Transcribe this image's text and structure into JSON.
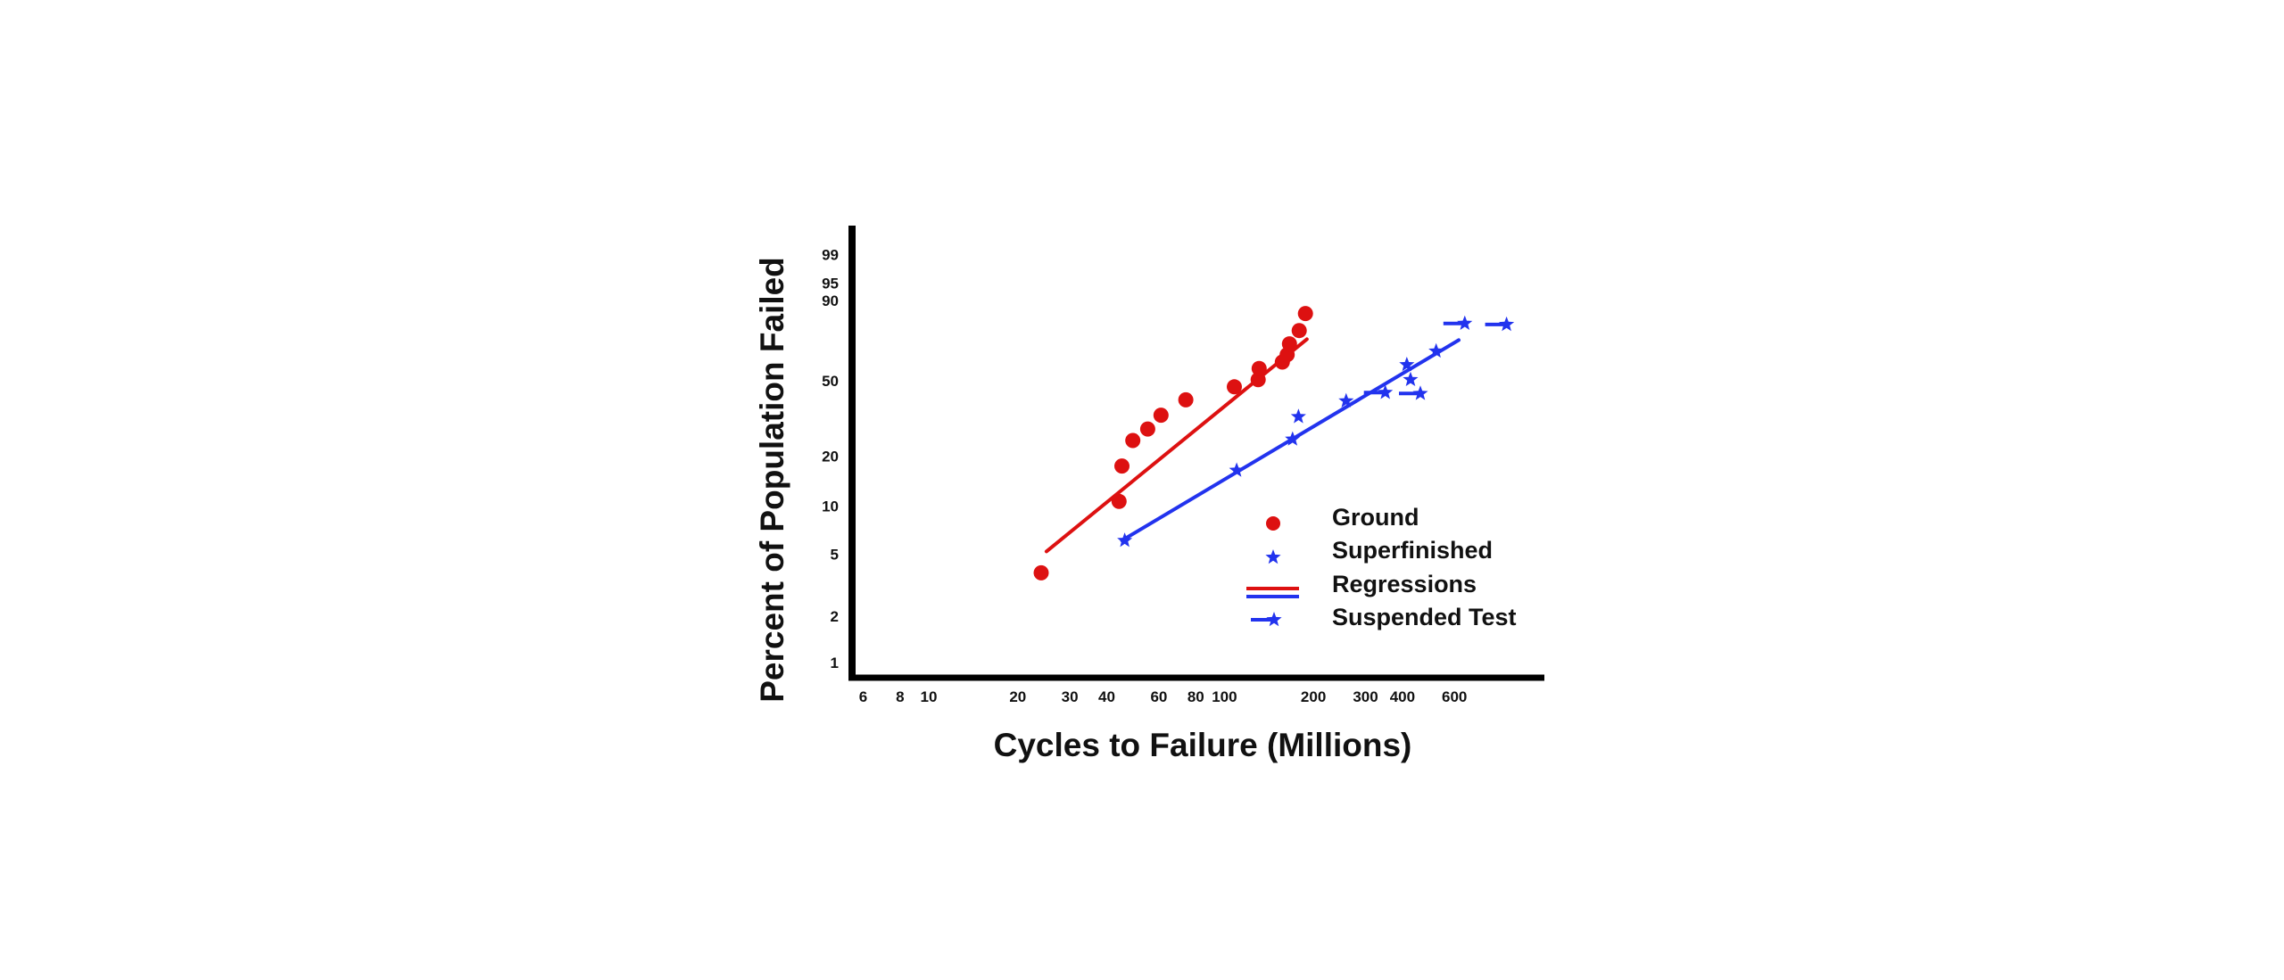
{
  "chart_data": {
    "type": "scatter",
    "title": "",
    "xlabel": "Cycles to Failure (Millions)",
    "ylabel": "Percent of Population Failed",
    "x_scale": "log",
    "y_scale": "weibull",
    "xlim": [
      5.5,
      1200
    ],
    "ylim": [
      0.8,
      99.9
    ],
    "x_ticks": [
      6,
      8,
      10,
      20,
      30,
      40,
      60,
      80,
      100,
      200,
      300,
      400,
      600
    ],
    "y_ticks": [
      1,
      2,
      5,
      10,
      20,
      50,
      90,
      95,
      99
    ],
    "colors": {
      "ground": "#dd1111",
      "superfinished": "#2233ee",
      "axis": "#000000"
    },
    "series": [
      {
        "name": "Ground",
        "marker": "circle",
        "color": "#dd1111",
        "points": [
          {
            "x": 24,
            "y": 3.8
          },
          {
            "x": 44,
            "y": 10.7
          },
          {
            "x": 45,
            "y": 17.5
          },
          {
            "x": 49,
            "y": 24.6
          },
          {
            "x": 55,
            "y": 28.5
          },
          {
            "x": 61,
            "y": 33.8
          },
          {
            "x": 74,
            "y": 40.5
          },
          {
            "x": 108,
            "y": 46.8
          },
          {
            "x": 130,
            "y": 50.5
          },
          {
            "x": 131,
            "y": 56.5
          },
          {
            "x": 157,
            "y": 60
          },
          {
            "x": 163,
            "y": 64
          },
          {
            "x": 166,
            "y": 70
          },
          {
            "x": 179,
            "y": 77
          },
          {
            "x": 188,
            "y": 85
          }
        ]
      },
      {
        "name": "Superfinished",
        "marker": "star",
        "color": "#2233ee",
        "points": [
          {
            "x": 46,
            "y": 6.1
          },
          {
            "x": 110,
            "y": 16.5
          },
          {
            "x": 170,
            "y": 25
          },
          {
            "x": 178,
            "y": 33.2
          },
          {
            "x": 258,
            "y": 40
          },
          {
            "x": 414,
            "y": 58.5
          },
          {
            "x": 426,
            "y": 50.5
          },
          {
            "x": 520,
            "y": 66
          }
        ]
      },
      {
        "name": "Suspended Test",
        "marker": "star-with-arrow",
        "color": "#2233ee",
        "points": [
          {
            "x": 350,
            "y": 44
          },
          {
            "x": 460,
            "y": 43.5
          },
          {
            "x": 650,
            "y": 80.5
          },
          {
            "x": 900,
            "y": 80
          }
        ]
      },
      {
        "name": "Regressions (Ground)",
        "type": "line",
        "color": "#dd1111",
        "points": [
          {
            "x": 25,
            "y": 5.2
          },
          {
            "x": 190,
            "y": 72.5
          }
        ]
      },
      {
        "name": "Regressions (Superfinished)",
        "type": "line",
        "color": "#2233ee",
        "points": [
          {
            "x": 45,
            "y": 6.1
          },
          {
            "x": 620,
            "y": 72
          }
        ]
      }
    ],
    "legend": {
      "position": "bottom-right",
      "entries": [
        {
          "label": "Ground",
          "symbol": "red-circle"
        },
        {
          "label": "Superfinished",
          "symbol": "blue-star"
        },
        {
          "label": "Regressions",
          "symbol": "red-blue-lines"
        },
        {
          "label": "Suspended Test",
          "symbol": "blue-star-arrow"
        }
      ]
    }
  }
}
